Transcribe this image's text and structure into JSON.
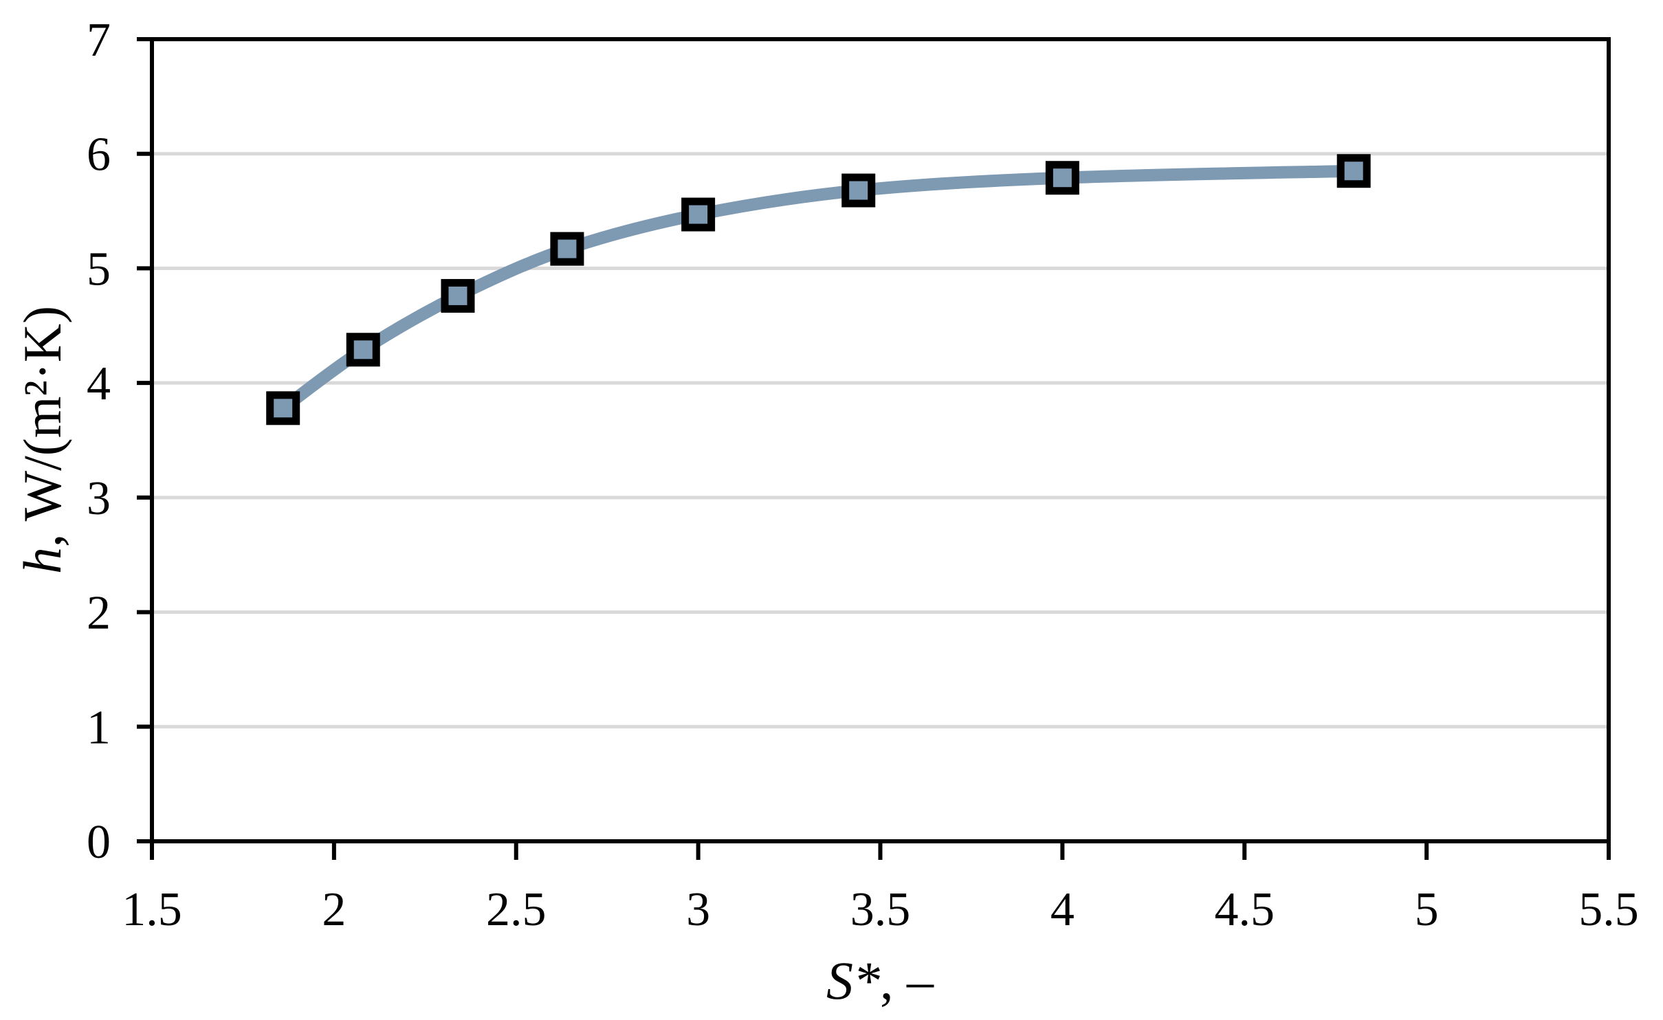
{
  "figure": {
    "background": "#ffffff"
  },
  "chart_data": {
    "type": "line",
    "title": "",
    "xlabel": {
      "var": "S*",
      "rest": ", –"
    },
    "ylabel": {
      "var": "h",
      "rest": ", W/(m²·K)"
    },
    "xlim": [
      1.5,
      5.5
    ],
    "ylim": [
      0,
      7
    ],
    "x_ticks": [
      1.5,
      2,
      2.5,
      3,
      3.5,
      4,
      4.5,
      5,
      5.5
    ],
    "x_tick_labels": [
      "1.5",
      "2",
      "2.5",
      "3",
      "3.5",
      "4",
      "4.5",
      "5",
      "5.5"
    ],
    "y_ticks": [
      0,
      1,
      2,
      3,
      4,
      5,
      6,
      7
    ],
    "y_tick_labels": [
      "0",
      "1",
      "2",
      "3",
      "4",
      "5",
      "6",
      "7"
    ],
    "grid": "horizontal",
    "grid_color": "#D9D9D9",
    "axis_color": "#000000",
    "legend": "none",
    "series": [
      {
        "name": "h vs S*",
        "marker": "square",
        "line_color": "#7E99B2",
        "marker_fill": "#7E99B2",
        "marker_border": "#000000",
        "points": [
          {
            "x": 1.86,
            "y": 3.78
          },
          {
            "x": 2.08,
            "y": 4.29
          },
          {
            "x": 2.34,
            "y": 4.76
          },
          {
            "x": 2.64,
            "y": 5.17
          },
          {
            "x": 3.0,
            "y": 5.47
          },
          {
            "x": 3.44,
            "y": 5.68
          },
          {
            "x": 4.0,
            "y": 5.79
          },
          {
            "x": 4.8,
            "y": 5.85
          }
        ]
      }
    ]
  }
}
